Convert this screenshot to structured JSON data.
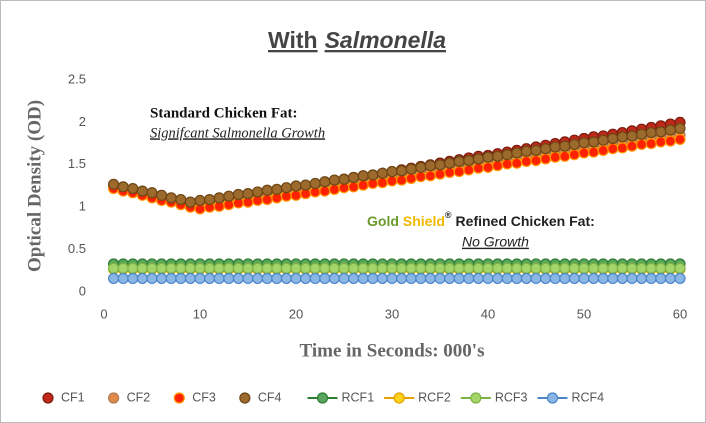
{
  "chart_data": {
    "type": "scatter",
    "title": [
      "With",
      "Salmonella"
    ],
    "xlabel": "Time in Seconds: 000's",
    "ylabel": "Optical Density (OD)",
    "annotations": {
      "standard": {
        "heading": "Standard Chicken Fat:",
        "note": "Signifcant Salmonella Growth"
      },
      "refined": {
        "heading": [
          "Gold",
          "Shield",
          "®",
          "Refined Chicken Fat:"
        ],
        "note": "No Growth"
      }
    },
    "xlim": [
      0,
      60
    ],
    "xticks": [
      0,
      10,
      20,
      30,
      40,
      50,
      60
    ],
    "ylim": [
      0,
      2.5
    ],
    "yticks": [
      0,
      0.5,
      1,
      1.5,
      2,
      2.5
    ],
    "grid": false,
    "legend": "bottom",
    "x": [
      1,
      2,
      3,
      4,
      5,
      6,
      7,
      8,
      9,
      10,
      11,
      12,
      13,
      14,
      15,
      16,
      17,
      18,
      19,
      20,
      21,
      22,
      23,
      24,
      25,
      26,
      27,
      28,
      29,
      30,
      31,
      32,
      33,
      34,
      35,
      36,
      37,
      38,
      39,
      40,
      41,
      42,
      43,
      44,
      45,
      46,
      47,
      48,
      49,
      50,
      51,
      52,
      53,
      54,
      55,
      56,
      57,
      58,
      59,
      60
    ],
    "series": [
      {
        "name": "CF1",
        "color": "#7a1d0e",
        "fill": "#c0281a",
        "line": false,
        "values": [
          1.25,
          1.22,
          1.19,
          1.17,
          1.14,
          1.11,
          1.08,
          1.05,
          1.03,
          1.04,
          1.06,
          1.08,
          1.1,
          1.12,
          1.14,
          1.15,
          1.17,
          1.19,
          1.21,
          1.23,
          1.25,
          1.27,
          1.29,
          1.31,
          1.33,
          1.35,
          1.37,
          1.38,
          1.4,
          1.42,
          1.44,
          1.46,
          1.48,
          1.5,
          1.52,
          1.54,
          1.56,
          1.58,
          1.6,
          1.61,
          1.63,
          1.65,
          1.67,
          1.69,
          1.71,
          1.73,
          1.75,
          1.77,
          1.79,
          1.81,
          1.83,
          1.84,
          1.86,
          1.88,
          1.9,
          1.92,
          1.94,
          1.96,
          1.98,
          2.0
        ]
      },
      {
        "name": "CF2",
        "color": "#b07a55",
        "fill": "#e08a4a",
        "line": false,
        "values": [
          1.23,
          1.2,
          1.18,
          1.15,
          1.13,
          1.1,
          1.07,
          1.05,
          1.02,
          1.0,
          1.02,
          1.03,
          1.05,
          1.07,
          1.09,
          1.1,
          1.12,
          1.14,
          1.15,
          1.17,
          1.19,
          1.2,
          1.22,
          1.24,
          1.26,
          1.27,
          1.29,
          1.31,
          1.32,
          1.34,
          1.36,
          1.37,
          1.39,
          1.41,
          1.43,
          1.44,
          1.46,
          1.48,
          1.49,
          1.51,
          1.53,
          1.54,
          1.56,
          1.58,
          1.6,
          1.61,
          1.63,
          1.65,
          1.66,
          1.68,
          1.7,
          1.71,
          1.73,
          1.75,
          1.77,
          1.78,
          1.8,
          1.82,
          1.83,
          1.85
        ]
      },
      {
        "name": "CF3",
        "color": "#ff9900",
        "fill": "#ff2200",
        "line": false,
        "values": [
          1.22,
          1.19,
          1.17,
          1.14,
          1.11,
          1.08,
          1.06,
          1.03,
          1.0,
          0.98,
          1.0,
          1.01,
          1.03,
          1.05,
          1.06,
          1.08,
          1.09,
          1.11,
          1.13,
          1.14,
          1.16,
          1.18,
          1.19,
          1.21,
          1.23,
          1.24,
          1.26,
          1.28,
          1.29,
          1.31,
          1.32,
          1.34,
          1.36,
          1.37,
          1.39,
          1.41,
          1.42,
          1.44,
          1.46,
          1.47,
          1.49,
          1.51,
          1.52,
          1.54,
          1.55,
          1.57,
          1.59,
          1.6,
          1.62,
          1.64,
          1.65,
          1.67,
          1.69,
          1.7,
          1.72,
          1.74,
          1.75,
          1.77,
          1.78,
          1.8
        ]
      },
      {
        "name": "CF4",
        "color": "#6e4614",
        "fill": "#9c6a2c",
        "line": false,
        "values": [
          1.27,
          1.24,
          1.22,
          1.19,
          1.17,
          1.14,
          1.11,
          1.09,
          1.06,
          1.08,
          1.09,
          1.11,
          1.13,
          1.15,
          1.16,
          1.18,
          1.2,
          1.21,
          1.23,
          1.25,
          1.26,
          1.28,
          1.3,
          1.32,
          1.33,
          1.35,
          1.37,
          1.38,
          1.4,
          1.42,
          1.43,
          1.45,
          1.47,
          1.49,
          1.5,
          1.52,
          1.54,
          1.55,
          1.57,
          1.59,
          1.6,
          1.62,
          1.64,
          1.66,
          1.67,
          1.69,
          1.71,
          1.72,
          1.74,
          1.76,
          1.77,
          1.79,
          1.81,
          1.83,
          1.84,
          1.86,
          1.88,
          1.89,
          1.91,
          1.93
        ]
      },
      {
        "name": "RCF1",
        "color": "#2e7d32",
        "fill": "#5aa55e",
        "line": true,
        "values": [
          0.33,
          0.33,
          0.33,
          0.33,
          0.33,
          0.33,
          0.33,
          0.33,
          0.33,
          0.33,
          0.33,
          0.33,
          0.33,
          0.33,
          0.33,
          0.33,
          0.33,
          0.33,
          0.33,
          0.33,
          0.33,
          0.33,
          0.33,
          0.33,
          0.33,
          0.33,
          0.33,
          0.33,
          0.33,
          0.33,
          0.33,
          0.33,
          0.33,
          0.33,
          0.33,
          0.33,
          0.33,
          0.33,
          0.33,
          0.33,
          0.33,
          0.33,
          0.33,
          0.33,
          0.33,
          0.33,
          0.33,
          0.33,
          0.33,
          0.33,
          0.33,
          0.33,
          0.33,
          0.33,
          0.33,
          0.33,
          0.33,
          0.33,
          0.33,
          0.33
        ]
      },
      {
        "name": "RCF2",
        "color": "#e5a100",
        "fill": "#ffd21a",
        "line": true,
        "values": [
          0.27,
          0.27,
          0.27,
          0.27,
          0.27,
          0.27,
          0.27,
          0.27,
          0.27,
          0.27,
          0.27,
          0.27,
          0.27,
          0.27,
          0.27,
          0.27,
          0.27,
          0.27,
          0.27,
          0.27,
          0.27,
          0.27,
          0.27,
          0.27,
          0.27,
          0.27,
          0.27,
          0.27,
          0.27,
          0.27,
          0.27,
          0.27,
          0.27,
          0.27,
          0.27,
          0.27,
          0.27,
          0.27,
          0.27,
          0.27,
          0.27,
          0.27,
          0.27,
          0.27,
          0.27,
          0.27,
          0.27,
          0.27,
          0.27,
          0.27,
          0.27,
          0.27,
          0.27,
          0.27,
          0.27,
          0.27,
          0.27,
          0.27,
          0.27,
          0.27
        ]
      },
      {
        "name": "RCF3",
        "color": "#7cb342",
        "fill": "#a5d46a",
        "line": true,
        "values": [
          0.28,
          0.28,
          0.28,
          0.28,
          0.28,
          0.28,
          0.28,
          0.28,
          0.28,
          0.28,
          0.28,
          0.28,
          0.28,
          0.28,
          0.28,
          0.28,
          0.28,
          0.28,
          0.28,
          0.28,
          0.28,
          0.28,
          0.28,
          0.28,
          0.28,
          0.28,
          0.28,
          0.28,
          0.28,
          0.28,
          0.28,
          0.28,
          0.28,
          0.28,
          0.28,
          0.28,
          0.28,
          0.28,
          0.28,
          0.28,
          0.28,
          0.28,
          0.28,
          0.28,
          0.28,
          0.28,
          0.28,
          0.28,
          0.28,
          0.28,
          0.28,
          0.28,
          0.28,
          0.28,
          0.28,
          0.28,
          0.28,
          0.28,
          0.28,
          0.28
        ]
      },
      {
        "name": "RCF4",
        "color": "#4a86c8",
        "fill": "#8ab6e6",
        "line": true,
        "values": [
          0.16,
          0.16,
          0.16,
          0.16,
          0.16,
          0.16,
          0.16,
          0.16,
          0.16,
          0.16,
          0.16,
          0.16,
          0.16,
          0.16,
          0.16,
          0.16,
          0.16,
          0.16,
          0.16,
          0.16,
          0.16,
          0.16,
          0.16,
          0.16,
          0.16,
          0.16,
          0.16,
          0.16,
          0.16,
          0.16,
          0.16,
          0.16,
          0.16,
          0.16,
          0.16,
          0.16,
          0.16,
          0.16,
          0.16,
          0.16,
          0.16,
          0.16,
          0.16,
          0.16,
          0.16,
          0.16,
          0.16,
          0.16,
          0.16,
          0.16,
          0.16,
          0.16,
          0.16,
          0.16,
          0.16,
          0.16,
          0.16,
          0.16,
          0.16,
          0.16
        ]
      }
    ]
  }
}
